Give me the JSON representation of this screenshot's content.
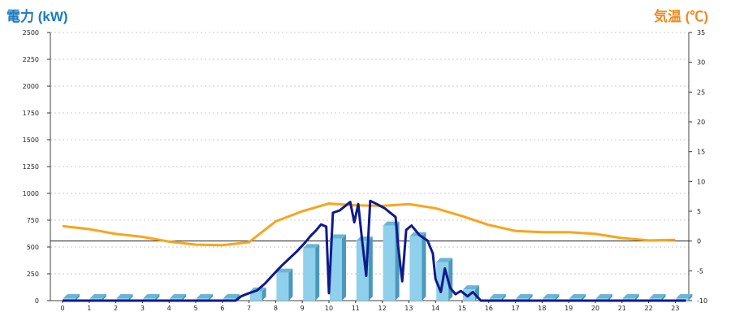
{
  "header": {
    "left_title": "電力 (kW)",
    "right_title": "気温 (℃)"
  },
  "colors": {
    "power_line": "#0d1b8c",
    "temp_line": "#f8a51c",
    "bar_front": "#8fd0ec",
    "bar_side": "#4a98bb",
    "bar_top": "#6bb5d6",
    "grid": "#c8c8c8"
  },
  "chart_data": {
    "type": "bar",
    "x_ticks": [
      "0",
      "1",
      "2",
      "3",
      "4",
      "5",
      "6",
      "7",
      "8",
      "9",
      "10",
      "11",
      "12",
      "13",
      "14",
      "15",
      "16",
      "17",
      "18",
      "19",
      "20",
      "21",
      "22",
      "23"
    ],
    "y_left_ticks": [
      "0",
      "250",
      "500",
      "750",
      "1000",
      "1250",
      "1500",
      "1750",
      "2000",
      "2250",
      "2500"
    ],
    "y_right_ticks": [
      "-10",
      "-5",
      "0",
      "5",
      "10",
      "15",
      "20",
      "25",
      "30",
      "35"
    ],
    "y_left_range": [
      0,
      2500
    ],
    "y_right_range": [
      -10,
      35
    ],
    "grid": true,
    "zero_line_temp": 0,
    "series": [
      {
        "kind": "bar",
        "axis": "left",
        "values": [
          0,
          0,
          0,
          0,
          0,
          0,
          0,
          85,
          260,
          490,
          580,
          560,
          700,
          600,
          360,
          105,
          0,
          0,
          0,
          0,
          0,
          0,
          0,
          0
        ]
      },
      {
        "kind": "line",
        "axis": "left",
        "points": [
          [
            0,
            0
          ],
          [
            6.5,
            0
          ],
          [
            6.7,
            40
          ],
          [
            7,
            70
          ],
          [
            7.3,
            95
          ],
          [
            7.6,
            160
          ],
          [
            7.9,
            240
          ],
          [
            8.2,
            320
          ],
          [
            8.5,
            390
          ],
          [
            8.8,
            460
          ],
          [
            9.1,
            540
          ],
          [
            9.3,
            600
          ],
          [
            9.5,
            650
          ],
          [
            9.7,
            710
          ],
          [
            9.9,
            690
          ],
          [
            10.0,
            70
          ],
          [
            10.15,
            820
          ],
          [
            10.4,
            840
          ],
          [
            10.6,
            880
          ],
          [
            10.8,
            920
          ],
          [
            10.95,
            730
          ],
          [
            11.1,
            900
          ],
          [
            11.25,
            550
          ],
          [
            11.4,
            230
          ],
          [
            11.55,
            930
          ],
          [
            11.8,
            900
          ],
          [
            12.1,
            860
          ],
          [
            12.3,
            820
          ],
          [
            12.5,
            780
          ],
          [
            12.6,
            500
          ],
          [
            12.75,
            180
          ],
          [
            12.9,
            660
          ],
          [
            13.1,
            700
          ],
          [
            13.4,
            610
          ],
          [
            13.7,
            560
          ],
          [
            13.9,
            440
          ],
          [
            14.0,
            200
          ],
          [
            14.2,
            80
          ],
          [
            14.35,
            300
          ],
          [
            14.55,
            120
          ],
          [
            14.75,
            60
          ],
          [
            14.95,
            90
          ],
          [
            15.2,
            40
          ],
          [
            15.4,
            80
          ],
          [
            15.7,
            0
          ],
          [
            23.4,
            0
          ]
        ]
      },
      {
        "kind": "line",
        "axis": "right",
        "points": [
          [
            0,
            2.5
          ],
          [
            1,
            2
          ],
          [
            2,
            1.2
          ],
          [
            3,
            0.7
          ],
          [
            4,
            -0.1
          ],
          [
            5,
            -0.6
          ],
          [
            6,
            -0.7
          ],
          [
            7,
            -0.2
          ],
          [
            8,
            3.3
          ],
          [
            9,
            5
          ],
          [
            10,
            6.3
          ],
          [
            11,
            6
          ],
          [
            12,
            5.9
          ],
          [
            13,
            6.2
          ],
          [
            14,
            5.5
          ],
          [
            15,
            4.2
          ],
          [
            16,
            2.7
          ],
          [
            17,
            1.7
          ],
          [
            18,
            1.5
          ],
          [
            19,
            1.5
          ],
          [
            20,
            1.2
          ],
          [
            21,
            0.5
          ],
          [
            22,
            0.1
          ],
          [
            23,
            0.2
          ]
        ]
      }
    ]
  }
}
